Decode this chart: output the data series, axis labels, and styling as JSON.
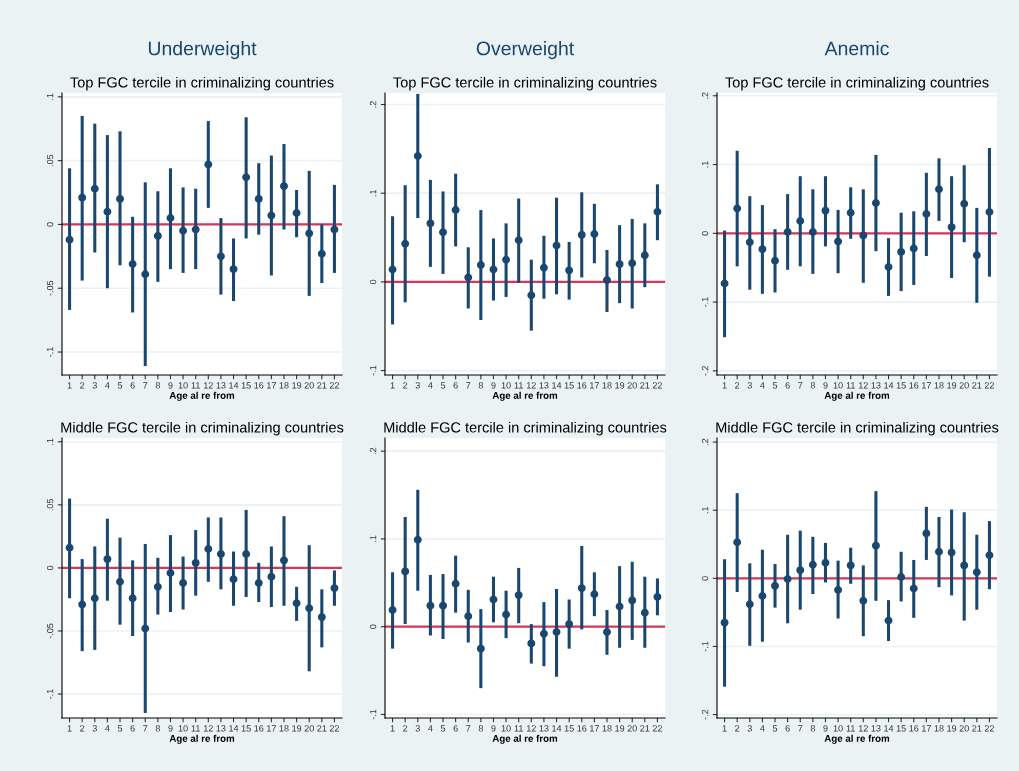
{
  "chart_data": [
    {
      "type": "scatter",
      "title": "Underweight",
      "subtitle": "Top FGC tercile in criminalizing countries",
      "xlabel": "Age al re from",
      "categories": [
        "1",
        "2",
        "3",
        "4",
        "5",
        "6",
        "7",
        "8",
        "9",
        "10",
        "11",
        "12",
        "13",
        "14",
        "15",
        "16",
        "17",
        "18",
        "19",
        "20",
        "21",
        "22"
      ],
      "ylim": [
        -0.118,
        0.103
      ],
      "yticks": [
        {
          "value": -0.1,
          "label": "-.1"
        },
        {
          "value": -0.05,
          "label": "-.05"
        },
        0,
        {
          "value": 0.05,
          "label": ".05"
        },
        {
          "value": 0.1,
          "label": ".1"
        }
      ],
      "grid": "y",
      "marker": "circle",
      "ref_lines": [
        {
          "axis": "y",
          "value": 0,
          "color": "#d4375a"
        }
      ],
      "series": [
        {
          "color": "#1a476f",
          "values": [
            -0.012,
            0.021,
            0.028,
            0.01,
            0.02,
            -0.031,
            -0.039,
            -0.009,
            0.005,
            -0.005,
            -0.004,
            0.047,
            -0.025,
            -0.035,
            0.037,
            0.02,
            0.007,
            0.03,
            0.009,
            -0.007,
            -0.023,
            -0.004
          ],
          "errors": [
            [
              -0.067,
              0.044
            ],
            [
              -0.044,
              0.085
            ],
            [
              -0.022,
              0.079
            ],
            [
              -0.05,
              0.07
            ],
            [
              -0.032,
              0.073
            ],
            [
              -0.069,
              0.006
            ],
            [
              -0.111,
              0.033
            ],
            [
              -0.045,
              0.026
            ],
            [
              -0.035,
              0.044
            ],
            [
              -0.038,
              0.029
            ],
            [
              -0.035,
              0.028
            ],
            [
              0.013,
              0.081
            ],
            [
              -0.055,
              0.005
            ],
            [
              -0.06,
              -0.011
            ],
            [
              -0.011,
              0.084
            ],
            [
              -0.008,
              0.048
            ],
            [
              -0.04,
              0.054
            ],
            [
              -0.004,
              0.063
            ],
            [
              -0.01,
              0.027
            ],
            [
              -0.056,
              0.042
            ],
            [
              -0.046,
              0.0
            ],
            [
              -0.038,
              0.031
            ]
          ]
        }
      ]
    },
    {
      "type": "scatter",
      "title": "Overweight",
      "subtitle": "Top FGC tercile in criminalizing countries",
      "xlabel": "Age al re from",
      "categories": [
        "1",
        "2",
        "3",
        "4",
        "5",
        "6",
        "7",
        "8",
        "9",
        "10",
        "11",
        "12",
        "13",
        "14",
        "15",
        "16",
        "17",
        "18",
        "19",
        "20",
        "21",
        "22"
      ],
      "ylim": [
        -0.105,
        0.213
      ],
      "yticks": [
        {
          "value": -0.1,
          "label": "-.1"
        },
        0,
        {
          "value": 0.1,
          "label": ".1"
        },
        {
          "value": 0.2,
          "label": ".2"
        }
      ],
      "grid": "y",
      "marker": "circle",
      "ref_lines": [
        {
          "axis": "y",
          "value": 0,
          "color": "#d4375a"
        }
      ],
      "series": [
        {
          "color": "#1a476f",
          "values": [
            0.014,
            0.043,
            0.142,
            0.066,
            0.056,
            0.081,
            0.005,
            0.019,
            0.014,
            0.025,
            0.047,
            -0.015,
            0.016,
            0.041,
            0.013,
            0.053,
            0.054,
            0.002,
            0.02,
            0.021,
            0.03,
            0.079
          ],
          "errors": [
            [
              -0.048,
              0.074
            ],
            [
              -0.023,
              0.109
            ],
            [
              0.072,
              0.212
            ],
            [
              0.017,
              0.115
            ],
            [
              0.009,
              0.102
            ],
            [
              0.04,
              0.122
            ],
            [
              -0.03,
              0.039
            ],
            [
              -0.043,
              0.081
            ],
            [
              -0.021,
              0.049
            ],
            [
              -0.017,
              0.066
            ],
            [
              -0.001,
              0.094
            ],
            [
              -0.055,
              0.025
            ],
            [
              -0.019,
              0.052
            ],
            [
              -0.014,
              0.095
            ],
            [
              -0.02,
              0.045
            ],
            [
              0.005,
              0.101
            ],
            [
              0.021,
              0.088
            ],
            [
              -0.034,
              0.036
            ],
            [
              -0.024,
              0.064
            ],
            [
              -0.03,
              0.071
            ],
            [
              -0.006,
              0.066
            ],
            [
              0.047,
              0.11
            ]
          ]
        }
      ]
    },
    {
      "type": "scatter",
      "title": "Anemic",
      "subtitle": "Top FGC tercile in criminalizing countries",
      "xlabel": "Age al re from",
      "categories": [
        "1",
        "2",
        "3",
        "4",
        "5",
        "6",
        "7",
        "8",
        "9",
        "10",
        "11",
        "12",
        "13",
        "14",
        "15",
        "16",
        "17",
        "18",
        "19",
        "20",
        "21",
        "22"
      ],
      "ylim": [
        -0.206,
        0.204
      ],
      "yticks": [
        {
          "value": -0.2,
          "label": "-.2"
        },
        {
          "value": -0.1,
          "label": "-.1"
        },
        0,
        {
          "value": 0.1,
          "label": ".1"
        },
        {
          "value": 0.2,
          "label": ".2"
        }
      ],
      "grid": "y",
      "marker": "circle",
      "ref_lines": [
        {
          "axis": "y",
          "value": 0,
          "color": "#d4375a"
        }
      ],
      "series": [
        {
          "color": "#1a476f",
          "values": [
            -0.073,
            0.036,
            -0.013,
            -0.023,
            -0.04,
            0.002,
            0.018,
            0.002,
            0.033,
            -0.012,
            0.03,
            -0.003,
            0.044,
            -0.049,
            -0.027,
            -0.022,
            0.028,
            0.064,
            0.009,
            0.043,
            -0.032,
            0.031
          ],
          "errors": [
            [
              -0.151,
              0.004
            ],
            [
              -0.048,
              0.12
            ],
            [
              -0.082,
              0.054
            ],
            [
              -0.088,
              0.041
            ],
            [
              -0.086,
              0.006
            ],
            [
              -0.053,
              0.057
            ],
            [
              -0.048,
              0.083
            ],
            [
              -0.059,
              0.064
            ],
            [
              -0.019,
              0.083
            ],
            [
              -0.058,
              0.034
            ],
            [
              -0.008,
              0.067
            ],
            [
              -0.072,
              0.064
            ],
            [
              -0.026,
              0.114
            ],
            [
              -0.091,
              -0.007
            ],
            [
              -0.084,
              0.03
            ],
            [
              -0.075,
              0.032
            ],
            [
              -0.033,
              0.088
            ],
            [
              0.018,
              0.109
            ],
            [
              -0.065,
              0.083
            ],
            [
              -0.013,
              0.099
            ],
            [
              -0.101,
              0.037
            ],
            [
              -0.063,
              0.124
            ]
          ]
        }
      ]
    },
    {
      "type": "scatter",
      "subtitle": "Middle FGC tercile in criminalizing countries",
      "xlabel": "Age al re from",
      "categories": [
        "1",
        "2",
        "3",
        "4",
        "5",
        "6",
        "7",
        "8",
        "9",
        "10",
        "11",
        "12",
        "13",
        "14",
        "15",
        "16",
        "17",
        "18",
        "19",
        "20",
        "21",
        "22"
      ],
      "ylim": [
        -0.119,
        0.103
      ],
      "yticks": [
        {
          "value": -0.1,
          "label": "-.1"
        },
        {
          "value": -0.05,
          "label": "-.05"
        },
        0,
        {
          "value": 0.05,
          "label": ".05"
        },
        {
          "value": 0.1,
          "label": ".1"
        }
      ],
      "grid": "y",
      "marker": "circle",
      "ref_lines": [
        {
          "axis": "y",
          "value": 0,
          "color": "#d4375a"
        }
      ],
      "series": [
        {
          "color": "#1a476f",
          "values": [
            0.016,
            -0.029,
            -0.024,
            0.007,
            -0.011,
            -0.024,
            -0.048,
            -0.015,
            -0.004,
            -0.012,
            0.004,
            0.015,
            0.011,
            -0.009,
            0.011,
            -0.012,
            -0.007,
            0.006,
            -0.028,
            -0.032,
            -0.039,
            -0.016
          ],
          "errors": [
            [
              -0.024,
              0.055
            ],
            [
              -0.066,
              0.007
            ],
            [
              -0.065,
              0.017
            ],
            [
              -0.026,
              0.039
            ],
            [
              -0.045,
              0.024
            ],
            [
              -0.054,
              0.006
            ],
            [
              -0.115,
              0.019
            ],
            [
              -0.037,
              0.008
            ],
            [
              -0.035,
              0.026
            ],
            [
              -0.033,
              0.009
            ],
            [
              -0.022,
              0.03
            ],
            [
              -0.011,
              0.04
            ],
            [
              -0.017,
              0.04
            ],
            [
              -0.03,
              0.013
            ],
            [
              -0.023,
              0.046
            ],
            [
              -0.027,
              0.004
            ],
            [
              -0.031,
              0.017
            ],
            [
              -0.03,
              0.041
            ],
            [
              -0.042,
              -0.015
            ],
            [
              -0.082,
              0.018
            ],
            [
              -0.063,
              -0.017
            ],
            [
              -0.03,
              -0.002
            ]
          ]
        }
      ]
    },
    {
      "type": "scatter",
      "subtitle": "Middle FGC tercile in criminalizing countries",
      "xlabel": "Age al re from",
      "categories": [
        "1",
        "2",
        "3",
        "4",
        "5",
        "6",
        "7",
        "8",
        "9",
        "10",
        "11",
        "12",
        "13",
        "14",
        "15",
        "16",
        "17",
        "18",
        "19",
        "20",
        "21",
        "22"
      ],
      "ylim": [
        -0.104,
        0.215
      ],
      "yticks": [
        {
          "value": -0.1,
          "label": "-.1"
        },
        0,
        {
          "value": 0.1,
          "label": ".1"
        },
        {
          "value": 0.2,
          "label": ".2"
        }
      ],
      "grid": "y",
      "marker": "circle",
      "ref_lines": [
        {
          "axis": "y",
          "value": 0,
          "color": "#d4375a"
        }
      ],
      "series": [
        {
          "color": "#1a476f",
          "values": [
            0.019,
            0.063,
            0.099,
            0.024,
            0.024,
            0.049,
            0.012,
            -0.025,
            0.031,
            0.014,
            0.036,
            -0.019,
            -0.008,
            -0.006,
            0.003,
            0.044,
            0.037,
            -0.006,
            0.023,
            0.03,
            0.016,
            0.034
          ],
          "errors": [
            [
              -0.025,
              0.062
            ],
            [
              0.003,
              0.125
            ],
            [
              0.041,
              0.156
            ],
            [
              -0.01,
              0.059
            ],
            [
              -0.014,
              0.06
            ],
            [
              0.016,
              0.081
            ],
            [
              -0.018,
              0.042
            ],
            [
              -0.07,
              0.02
            ],
            [
              0.005,
              0.057
            ],
            [
              -0.013,
              0.041
            ],
            [
              0.004,
              0.067
            ],
            [
              -0.042,
              0.003
            ],
            [
              -0.045,
              0.028
            ],
            [
              -0.057,
              0.043
            ],
            [
              -0.025,
              0.031
            ],
            [
              -0.003,
              0.092
            ],
            [
              0.012,
              0.062
            ],
            [
              -0.032,
              0.019
            ],
            [
              -0.024,
              0.069
            ],
            [
              -0.015,
              0.074
            ],
            [
              -0.024,
              0.057
            ],
            [
              0.013,
              0.055
            ]
          ]
        }
      ]
    },
    {
      "type": "scatter",
      "subtitle": "Middle FGC tercile in criminalizing countries",
      "xlabel": "Age al re from",
      "categories": [
        "1",
        "2",
        "3",
        "4",
        "5",
        "6",
        "7",
        "8",
        "9",
        "10",
        "11",
        "12",
        "13",
        "14",
        "15",
        "16",
        "17",
        "18",
        "19",
        "20",
        "21",
        "22"
      ],
      "ylim": [
        -0.205,
        0.206
      ],
      "yticks": [
        {
          "value": -0.2,
          "label": "-.2"
        },
        {
          "value": -0.1,
          "label": "-.1"
        },
        0,
        {
          "value": 0.1,
          "label": ".1"
        },
        {
          "value": 0.2,
          "label": ".2"
        }
      ],
      "grid": "y",
      "marker": "circle",
      "ref_lines": [
        {
          "axis": "y",
          "value": 0,
          "color": "#d4375a"
        }
      ],
      "series": [
        {
          "color": "#1a476f",
          "values": [
            -0.065,
            0.053,
            -0.038,
            -0.026,
            -0.011,
            -0.001,
            0.012,
            0.02,
            0.023,
            -0.017,
            0.019,
            -0.033,
            0.048,
            -0.062,
            0.002,
            -0.015,
            0.066,
            0.039,
            0.038,
            0.019,
            0.009,
            0.034
          ],
          "errors": [
            [
              -0.159,
              0.028
            ],
            [
              -0.02,
              0.125
            ],
            [
              -0.099,
              0.022
            ],
            [
              -0.093,
              0.042
            ],
            [
              -0.043,
              0.021
            ],
            [
              -0.066,
              0.064
            ],
            [
              -0.046,
              0.07
            ],
            [
              -0.023,
              0.061
            ],
            [
              -0.006,
              0.052
            ],
            [
              -0.059,
              0.026
            ],
            [
              -0.008,
              0.045
            ],
            [
              -0.085,
              0.019
            ],
            [
              -0.033,
              0.128
            ],
            [
              -0.092,
              -0.032
            ],
            [
              -0.034,
              0.039
            ],
            [
              -0.058,
              0.027
            ],
            [
              0.027,
              0.105
            ],
            [
              -0.013,
              0.09
            ],
            [
              -0.025,
              0.101
            ],
            [
              -0.062,
              0.097
            ],
            [
              -0.046,
              0.064
            ],
            [
              -0.016,
              0.084
            ]
          ]
        }
      ]
    }
  ]
}
